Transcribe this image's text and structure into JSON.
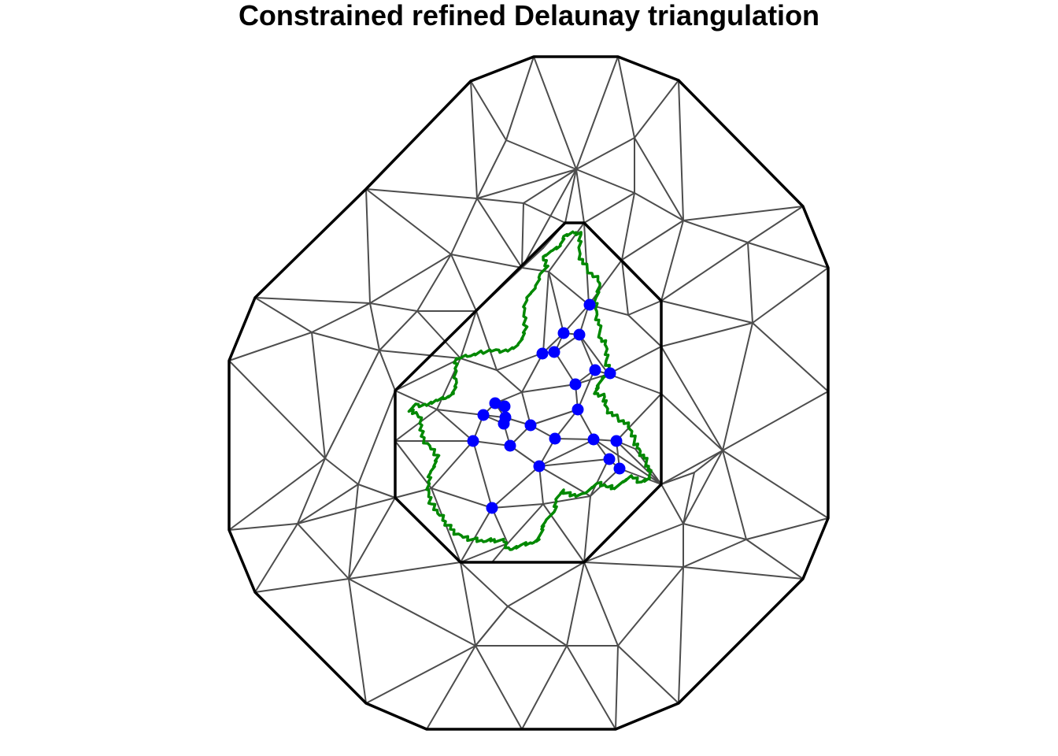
{
  "title": "Constrained refined Delaunay triangulation",
  "colors": {
    "background": "#ffffff",
    "mesh_edges": "#4d4d4d",
    "outer_boundary": "#000000",
    "inner_boundary": "#000000",
    "region_outline": "#008800",
    "observation_points": "#0000ff"
  },
  "legend": "none",
  "axes": "none"
}
